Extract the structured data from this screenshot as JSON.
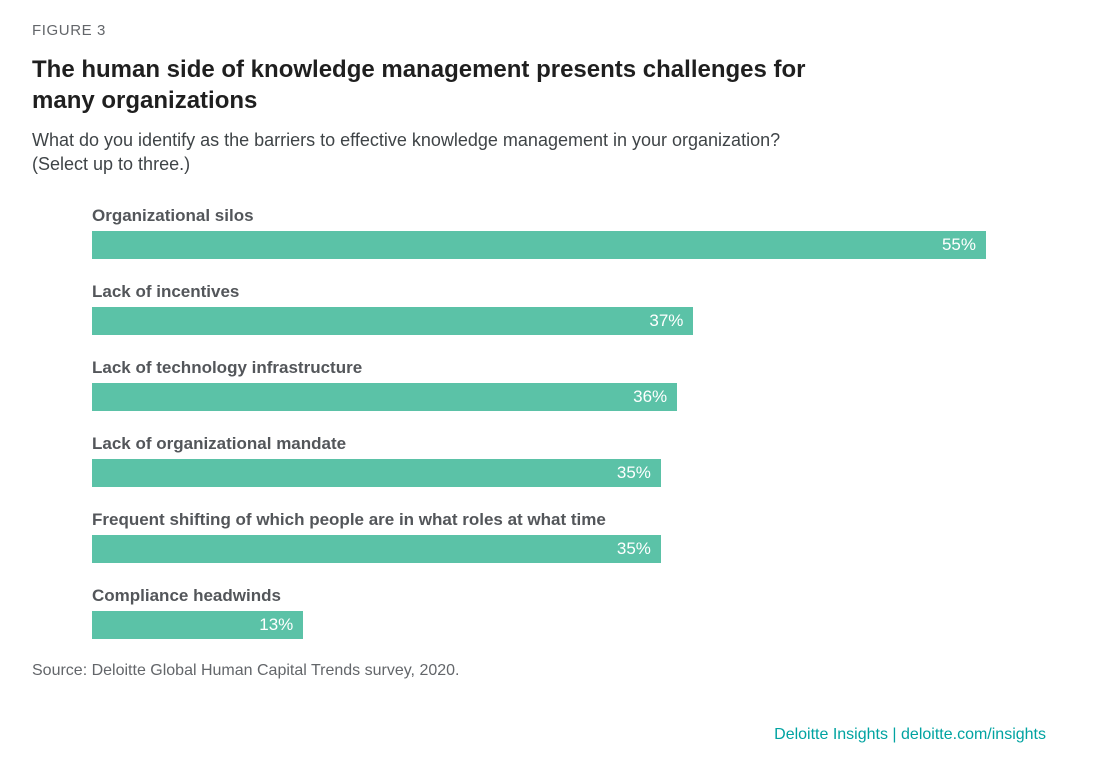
{
  "figure_label": "FIGURE 3",
  "title": "The human side of knowledge management presents challenges for\nmany organizations",
  "subtitle": "What do you identify as the barriers to effective knowledge management in your organization?\n(Select up to three.)",
  "source": "Source: Deloitte Global Human Capital Trends survey, 2020.",
  "footer": {
    "brand": "Deloitte Insights",
    "separator": " | ",
    "url": "deloitte.com/insights"
  },
  "colors": {
    "bar": "#5bc2a7",
    "bar_value_text": "#ffffff",
    "title_text": "#1f1f1f",
    "figure_label_text": "#63666a",
    "subtitle_text": "#3f4447",
    "category_label_text": "#53565a",
    "source_text": "#63666a",
    "footer_text": "#00a3a1"
  },
  "chart_data": {
    "type": "bar",
    "orientation": "horizontal",
    "title": "The human side of knowledge management presents challenges for many organizations",
    "subtitle": "What do you identify as the barriers to effective knowledge management in your organization? (Select up to three.)",
    "categories": [
      "Organizational silos",
      "Lack of incentives",
      "Lack of technology infrastructure",
      "Lack of organizational mandate",
      "Frequent shifting of which people are in what roles at what time",
      "Compliance headwinds"
    ],
    "values": [
      55,
      37,
      36,
      35,
      35,
      13
    ],
    "value_labels": [
      "55%",
      "37%",
      "36%",
      "35%",
      "35%",
      "13%"
    ],
    "value_suffix": "%",
    "xlim": [
      0,
      55
    ],
    "grid": false,
    "legend": false,
    "value_label_position": "inside-end",
    "source": "Deloitte Global Human Capital Trends survey, 2020"
  }
}
